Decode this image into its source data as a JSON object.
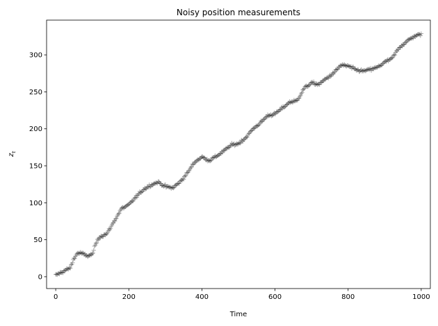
{
  "chart_data": {
    "type": "scatter",
    "title": "Noisy position measurements",
    "xlabel": "Time",
    "ylabel": "z",
    "ylabel_subscript": "t",
    "xlim": [
      -25,
      1025
    ],
    "ylim": [
      -16,
      347
    ],
    "xticks": [
      0,
      200,
      400,
      600,
      800,
      1000
    ],
    "yticks": [
      0,
      50,
      100,
      150,
      200,
      250,
      300
    ],
    "grid": false,
    "marker": "+",
    "marker_color": "#000000",
    "marker_alpha": 0.35,
    "trace_x": [
      0,
      20,
      40,
      50,
      60,
      70,
      85,
      100,
      110,
      120,
      140,
      160,
      180,
      200,
      220,
      240,
      260,
      280,
      300,
      320,
      340,
      360,
      380,
      400,
      420,
      440,
      460,
      480,
      500,
      520,
      540,
      560,
      580,
      600,
      620,
      640,
      660,
      680,
      700,
      720,
      740,
      760,
      780,
      800,
      820,
      840,
      860,
      880,
      900,
      920,
      940,
      960,
      980,
      1000
    ],
    "trace_y": [
      2,
      7,
      12,
      25,
      32,
      32,
      28,
      30,
      45,
      54,
      58,
      75,
      92,
      97,
      108,
      118,
      124,
      128,
      122,
      120,
      128,
      140,
      155,
      162,
      157,
      163,
      170,
      178,
      180,
      188,
      200,
      208,
      218,
      220,
      228,
      236,
      238,
      255,
      262,
      260,
      268,
      275,
      286,
      285,
      280,
      278,
      280,
      283,
      290,
      295,
      310,
      318,
      325,
      328
    ]
  }
}
